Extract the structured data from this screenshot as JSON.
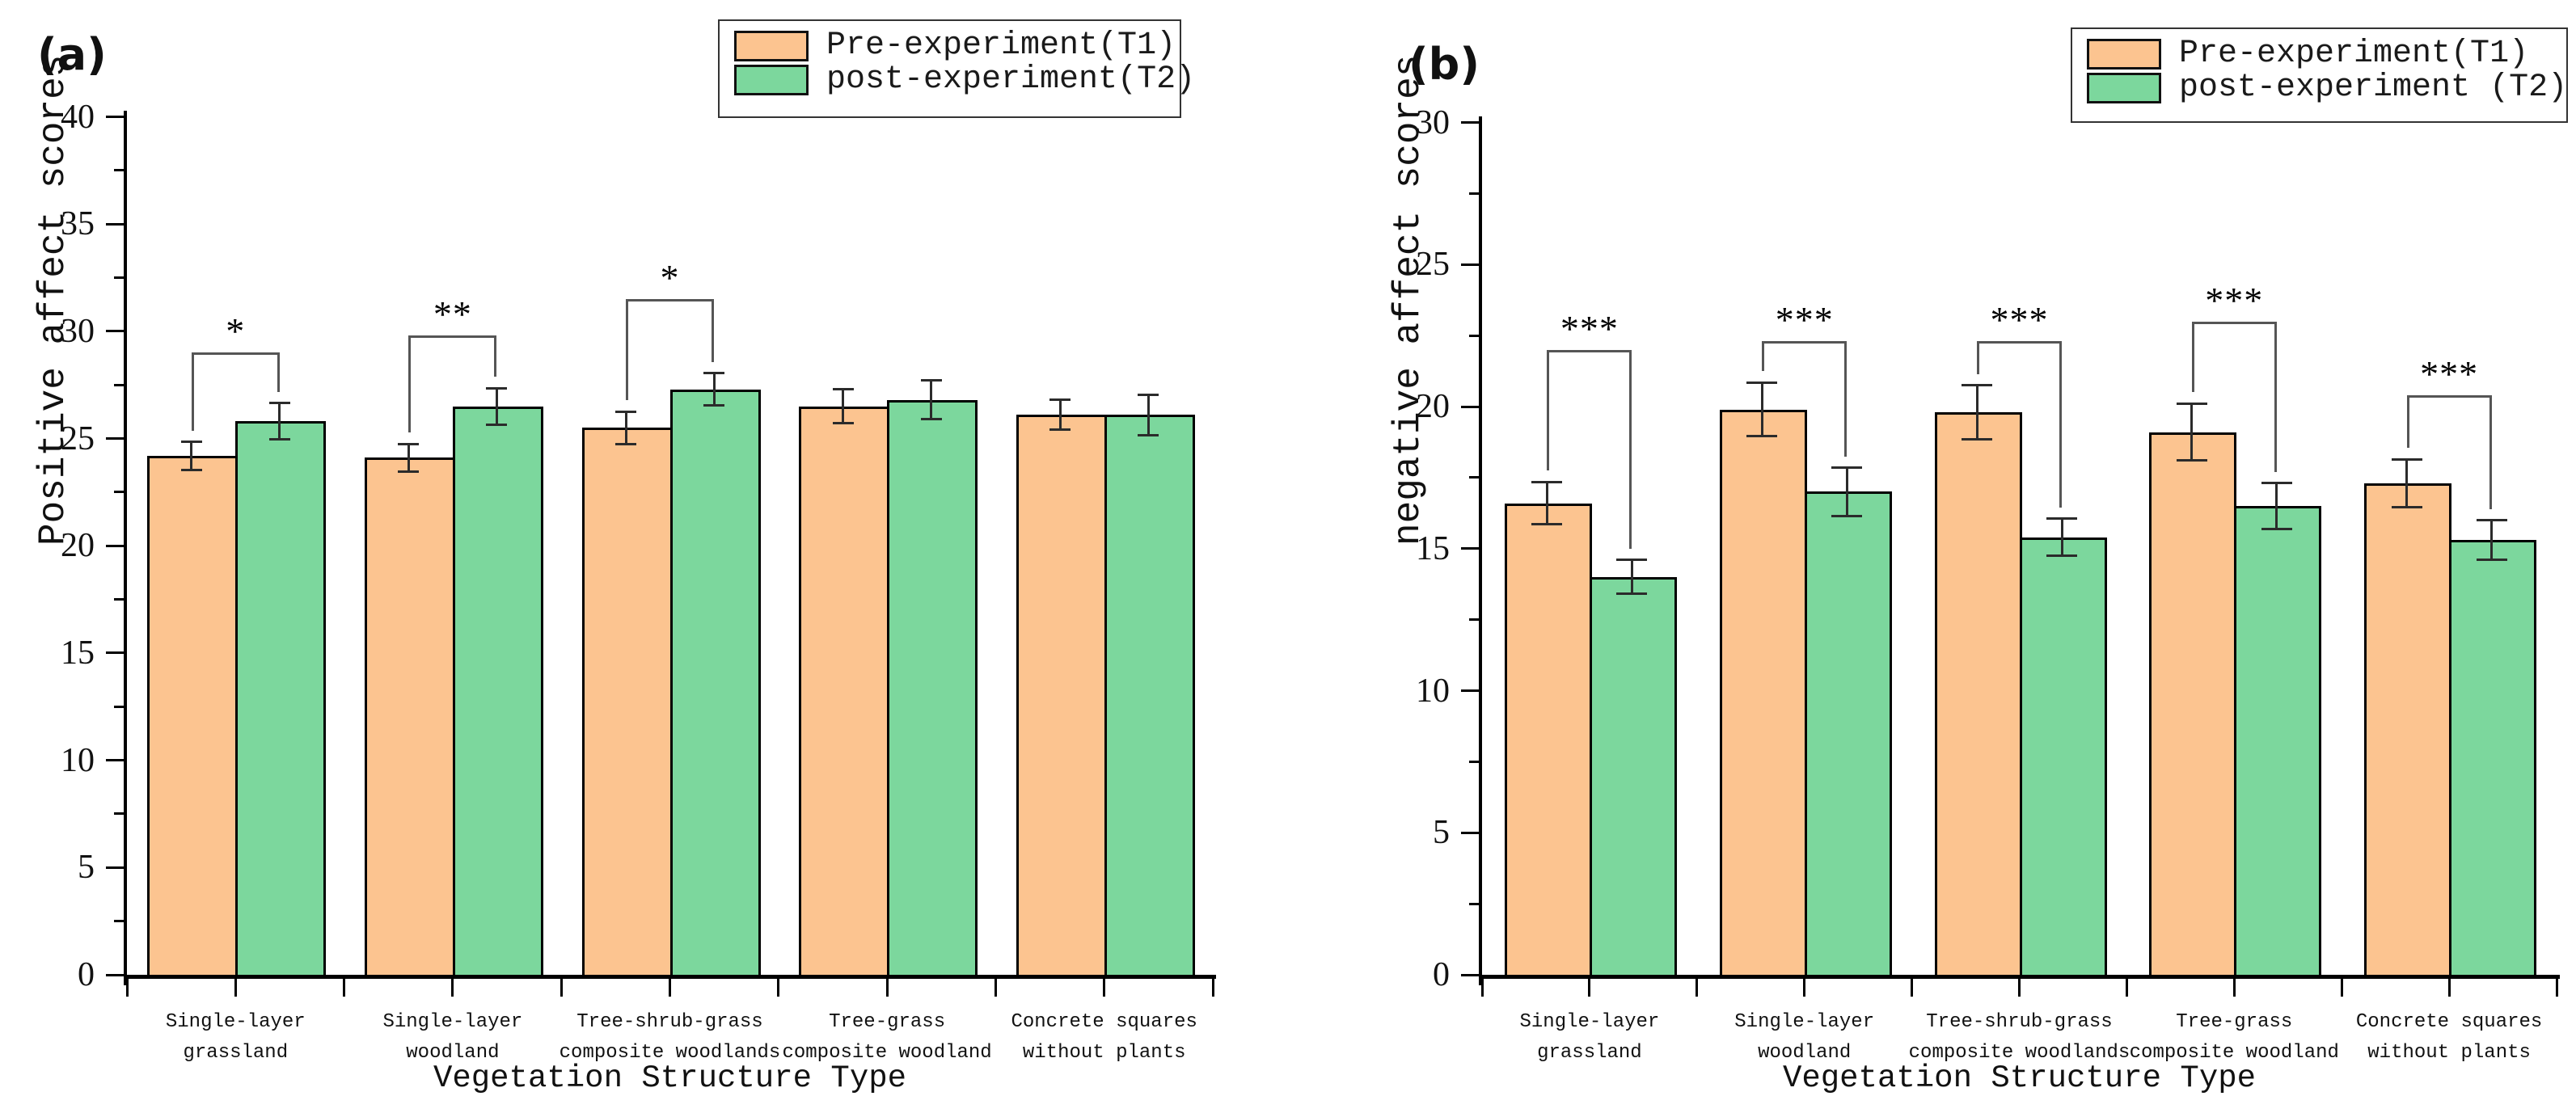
{
  "figure": {
    "background": "#ffffff",
    "bar_edge_color": "#000000",
    "error_bar_color": "#2b2b2b",
    "bracket_color": "#555555"
  },
  "chart_data": [
    {
      "type": "bar",
      "panel_label": "(a)",
      "ylabel": "Positive affect scores",
      "xlabel": "Vegetation Structure Type",
      "ylim": [
        0,
        40
      ],
      "yticks": [
        0,
        5,
        10,
        15,
        20,
        25,
        30,
        35,
        40
      ],
      "yminor_step": 2.5,
      "grid": false,
      "legend_position": "top-right",
      "categories": [
        "Single-layer\ngrassland",
        "Single-layer\nwoodland",
        "Tree-shrub-grass\ncomposite woodlands",
        "Tree-grass\ncomposite woodland",
        "Concrete squares\nwithout plants"
      ],
      "legend": {
        "items": [
          {
            "label": "Pre-experiment(T1)",
            "color": "#FCC490"
          },
          {
            "label": "post-experiment(T2)",
            "color": "#7CD79D"
          }
        ]
      },
      "series": [
        {
          "name": "Pre-experiment(T1)",
          "color": "#FCC490",
          "values": [
            24.2,
            24.1,
            25.5,
            26.5,
            26.1
          ],
          "errors": [
            0.65,
            0.65,
            0.75,
            0.8,
            0.7
          ]
        },
        {
          "name": "post-experiment(T2)",
          "color": "#7CD79D",
          "values": [
            25.8,
            26.5,
            27.3,
            26.8,
            26.1
          ],
          "errors": [
            0.85,
            0.85,
            0.75,
            0.9,
            0.95
          ]
        }
      ],
      "significance": [
        {
          "group": 0,
          "label": "*",
          "height": 29.0
        },
        {
          "group": 1,
          "label": "**",
          "height": 29.8
        },
        {
          "group": 2,
          "label": "*",
          "height": 31.5
        }
      ]
    },
    {
      "type": "bar",
      "panel_label": "(b)",
      "ylabel": "negative affect scores",
      "xlabel": "Vegetation Structure Type",
      "ylim": [
        0,
        30
      ],
      "yticks": [
        0,
        5,
        10,
        15,
        20,
        25,
        30
      ],
      "yminor_step": 2.5,
      "grid": false,
      "legend_position": "top-right",
      "categories": [
        "Single-layer\ngrassland",
        "Single-layer\nwoodland",
        "Tree-shrub-grass\ncomposite woodlands",
        "Tree-grass\ncomposite woodland",
        "Concrete squares\nwithout plants"
      ],
      "legend": {
        "items": [
          {
            "label": "Pre-experiment(T1)",
            "color": "#FCC490"
          },
          {
            "label": "post-experiment (T2)",
            "color": "#7CD79D"
          }
        ]
      },
      "series": [
        {
          "name": "Pre-experiment(T1)",
          "color": "#FCC490",
          "values": [
            16.6,
            19.9,
            19.8,
            19.1,
            17.3
          ],
          "errors": [
            0.75,
            0.95,
            0.95,
            1.0,
            0.85
          ]
        },
        {
          "name": "post-experiment (T2)",
          "color": "#7CD79D",
          "values": [
            14.0,
            17.0,
            15.4,
            16.5,
            15.3
          ],
          "errors": [
            0.6,
            0.85,
            0.65,
            0.8,
            0.7
          ]
        }
      ],
      "significance": [
        {
          "group": 0,
          "label": "***",
          "height": 22.0
        },
        {
          "group": 1,
          "label": "***",
          "height": 22.3
        },
        {
          "group": 2,
          "label": "***",
          "height": 22.3
        },
        {
          "group": 3,
          "label": "***",
          "height": 23.0
        },
        {
          "group": 4,
          "label": "***",
          "height": 20.4
        }
      ]
    }
  ]
}
